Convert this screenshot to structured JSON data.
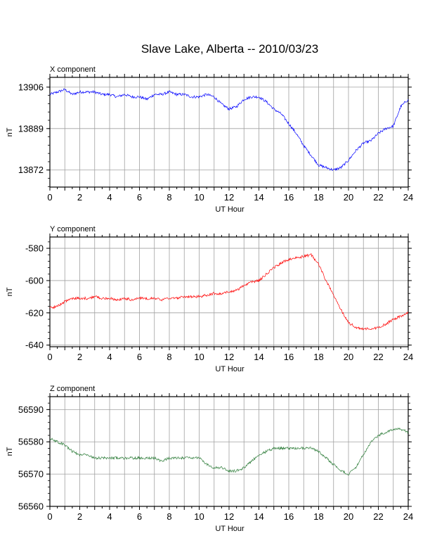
{
  "title": "Slave Lake, Alberta -- 2010/03/23",
  "chart_data": [
    {
      "type": "line",
      "panel_title": "X component",
      "xlabel": "UT Hour",
      "ylabel": "nT",
      "xlim": [
        0,
        24
      ],
      "ylim": [
        13865,
        13910
      ],
      "xticks": [
        0,
        2,
        4,
        6,
        8,
        10,
        12,
        14,
        16,
        18,
        20,
        22,
        24
      ],
      "yticks": [
        13872,
        13889,
        13906
      ],
      "grid": true,
      "series": [
        {
          "color": "#0000ff",
          "x": [
            0,
            0.5,
            1,
            1.5,
            2,
            2.5,
            3,
            3.5,
            4,
            4.5,
            5,
            5.5,
            6,
            6.5,
            7,
            7.5,
            8,
            8.5,
            9,
            9.5,
            10,
            10.5,
            11,
            11.5,
            12,
            12.5,
            13,
            13.5,
            14,
            14.5,
            15,
            15.5,
            16,
            16.5,
            17,
            17.5,
            18,
            18.5,
            19,
            19.5,
            20,
            20.5,
            21,
            21.5,
            22,
            22.5,
            23,
            23.5,
            24
          ],
          "values": [
            13903,
            13904,
            13905,
            13903,
            13904,
            13904,
            13904,
            13903,
            13903,
            13902,
            13903,
            13902,
            13902,
            13901,
            13903,
            13903,
            13904,
            13903,
            13903,
            13902,
            13902,
            13903,
            13902,
            13899,
            13897,
            13898,
            13901,
            13902,
            13902,
            13900,
            13897,
            13895,
            13891,
            13887,
            13882,
            13878,
            13874,
            13873,
            13872,
            13873,
            13876,
            13880,
            13883,
            13884,
            13887,
            13889,
            13890,
            13898,
            13901
          ]
        }
      ]
    },
    {
      "type": "line",
      "panel_title": "Y component",
      "xlabel": "UT Hour",
      "ylabel": "nT",
      "xlim": [
        0,
        24
      ],
      "ylim": [
        -641,
        -573
      ],
      "xticks": [
        0,
        2,
        4,
        6,
        8,
        10,
        12,
        14,
        16,
        18,
        20,
        22,
        24
      ],
      "yticks": [
        -640,
        -620,
        -600,
        -580
      ],
      "grid": true,
      "series": [
        {
          "color": "#ff0000",
          "x": [
            0,
            0.5,
            1,
            1.5,
            2,
            2.5,
            3,
            3.5,
            4,
            4.5,
            5,
            5.5,
            6,
            6.5,
            7,
            7.5,
            8,
            8.5,
            9,
            9.5,
            10,
            10.5,
            11,
            11.5,
            12,
            12.5,
            13,
            13.5,
            14,
            14.5,
            15,
            15.5,
            16,
            16.5,
            17,
            17.5,
            18,
            18.5,
            19,
            19.5,
            20,
            20.5,
            21,
            21.5,
            22,
            22.5,
            23,
            23.5,
            24
          ],
          "values": [
            -617,
            -616,
            -613,
            -611,
            -611,
            -611,
            -610,
            -611,
            -611,
            -612,
            -611,
            -612,
            -611,
            -611,
            -611,
            -612,
            -611,
            -611,
            -610,
            -610,
            -610,
            -609,
            -608,
            -608,
            -607,
            -606,
            -603,
            -601,
            -600,
            -596,
            -592,
            -589,
            -587,
            -586,
            -585,
            -584,
            -590,
            -600,
            -609,
            -618,
            -626,
            -629,
            -630,
            -630,
            -629,
            -627,
            -624,
            -622,
            -620
          ]
        }
      ]
    },
    {
      "type": "line",
      "panel_title": "Z component",
      "xlabel": "UT Hour",
      "ylabel": "nT",
      "xlim": [
        0,
        24
      ],
      "ylim": [
        56560,
        56594
      ],
      "xticks": [
        0,
        2,
        4,
        6,
        8,
        10,
        12,
        14,
        16,
        18,
        20,
        22,
        24
      ],
      "yticks": [
        56560,
        56570,
        56580,
        56590
      ],
      "grid": true,
      "series": [
        {
          "color": "#2e7d3a",
          "x": [
            0,
            0.5,
            1,
            1.5,
            2,
            2.5,
            3,
            3.5,
            4,
            4.5,
            5,
            5.5,
            6,
            6.5,
            7,
            7.5,
            8,
            8.5,
            9,
            9.5,
            10,
            10.5,
            11,
            11.5,
            12,
            12.5,
            13,
            13.5,
            14,
            14.5,
            15,
            15.5,
            16,
            16.5,
            17,
            17.5,
            18,
            18.5,
            19,
            19.5,
            20,
            20.5,
            21,
            21.5,
            22,
            22.5,
            23,
            23.5,
            24
          ],
          "values": [
            56581,
            56580,
            56579,
            56577,
            56576,
            56576,
            56575,
            56575,
            56575,
            56575,
            56575,
            56575,
            56575,
            56575,
            56575,
            56574,
            56575,
            56575,
            56575,
            56575,
            56575,
            56573,
            56572,
            56572,
            56571,
            56571,
            56572,
            56574,
            56576,
            56577,
            56578,
            56578,
            56578,
            56578,
            56578,
            56578,
            56577,
            56575,
            56573,
            56571,
            56570,
            56572,
            56576,
            56580,
            56582,
            56583,
            56584,
            56584,
            56583
          ]
        }
      ]
    }
  ]
}
